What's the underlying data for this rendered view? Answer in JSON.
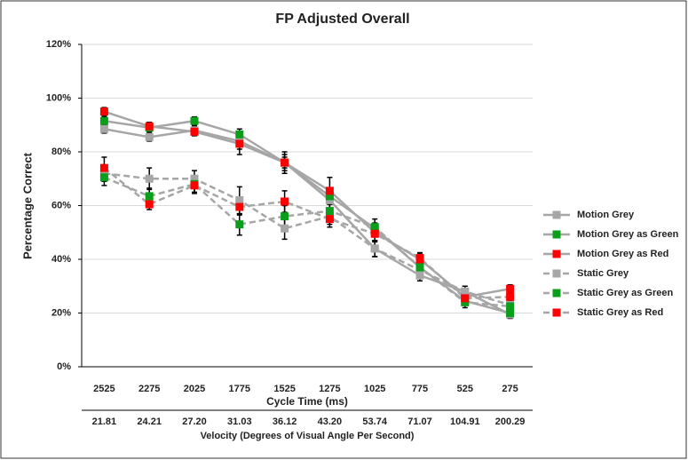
{
  "chart_data": {
    "type": "line",
    "title": "FP Adjusted Overall",
    "y_label": "Percentage Correct",
    "x_label": "Cycle Time (ms)",
    "x2_label": "Velocity (Degrees of Visual Angle Per Second)",
    "categories": [
      "2525",
      "2275",
      "2025",
      "1775",
      "1525",
      "1275",
      "1025",
      "775",
      "525",
      "275"
    ],
    "x2_categories": [
      "21.81",
      "24.21",
      "27.20",
      "31.03",
      "36.12",
      "43.20",
      "53.74",
      "71.07",
      "104.91",
      "200.29"
    ],
    "ylim": [
      0,
      120
    ],
    "yticks": [
      {
        "value": 0,
        "label": "0%"
      },
      {
        "value": 20,
        "label": "20%"
      },
      {
        "value": 40,
        "label": "40%"
      },
      {
        "value": 60,
        "label": "60%"
      },
      {
        "value": 80,
        "label": "80%"
      },
      {
        "value": 100,
        "label": "100%"
      },
      {
        "value": 120,
        "label": "120%"
      }
    ],
    "grid": true,
    "legend": "right",
    "line_color": "#a6a6a6",
    "error_color": "#000000",
    "series": [
      {
        "name": "Motion Grey",
        "color": "#a6a6a6",
        "dashed": false,
        "values": [
          88.5,
          85.5,
          88,
          84,
          76,
          62,
          44,
          34,
          28,
          19.5
        ],
        "errors": [
          1.5,
          1.5,
          1.5,
          3,
          3,
          4,
          3,
          2,
          2,
          1.5
        ]
      },
      {
        "name": "Motion Grey as Green",
        "color": "#0b9e1a",
        "dashed": false,
        "values": [
          91.5,
          89,
          91.5,
          86.5,
          76,
          63.5,
          51.5,
          37,
          24.5,
          20
        ],
        "errors": [
          1.5,
          1.5,
          1.5,
          2,
          2,
          3,
          2,
          2,
          1.5,
          1.5
        ]
      },
      {
        "name": "Motion Grey as  Red",
        "color": "#ff0000",
        "dashed": false,
        "values": [
          95,
          89.5,
          87.5,
          83,
          76,
          65.5,
          50,
          40,
          26,
          29
        ],
        "errors": [
          1.5,
          1.5,
          1.5,
          4,
          4,
          5,
          3,
          2,
          1.5,
          1.5
        ]
      },
      {
        "name": "Static Grey",
        "color": "#a6a6a6",
        "dashed": true,
        "values": [
          72,
          70,
          70,
          62,
          51.5,
          56,
          44,
          36,
          28,
          23
        ],
        "errors": [
          3,
          4,
          3,
          5,
          4,
          3,
          3,
          2,
          2,
          1.5
        ]
      },
      {
        "name": "Static Grey as Green",
        "color": "#0b9e1a",
        "dashed": true,
        "values": [
          70.5,
          63.5,
          68,
          53,
          56,
          58,
          52,
          37,
          24,
          22.5
        ],
        "errors": [
          3,
          3,
          3,
          4,
          4,
          3,
          3,
          2,
          2,
          2
        ]
      },
      {
        "name": "Static Grey as Red",
        "color": "#ff0000",
        "dashed": true,
        "values": [
          74,
          60.5,
          67.5,
          59.5,
          61.5,
          55,
          49.5,
          40.5,
          25.5,
          26
        ],
        "errors": [
          4,
          2,
          3,
          3,
          4,
          3,
          3,
          2,
          2,
          2
        ]
      }
    ]
  }
}
